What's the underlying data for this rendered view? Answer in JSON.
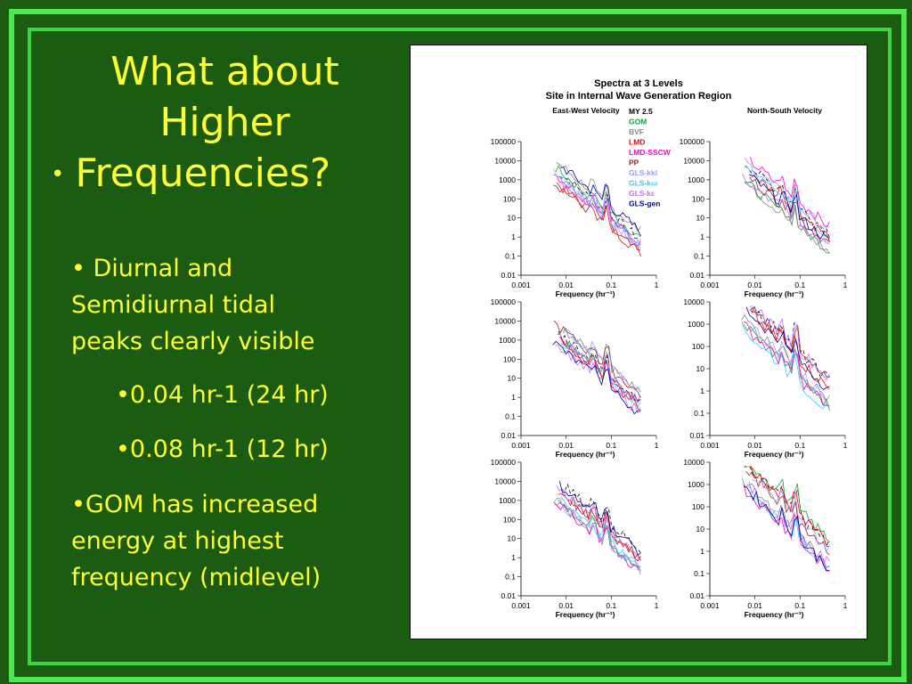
{
  "slide": {
    "title_lines": [
      "What about",
      "Higher",
      "Frequencies?"
    ],
    "title_bullet": "•",
    "bullets": [
      {
        "text": "• Diurnal and"
      },
      {
        "text": "Semidiurnal tidal"
      },
      {
        "text": "peaks clearly visible"
      },
      {
        "text": "•0.04 hr-1 (24 hr)"
      },
      {
        "text": "•0.08 hr-1 (12 hr)"
      },
      {
        "text": "•GOM has increased"
      },
      {
        "text": "energy at highest"
      },
      {
        "text": "frequency (midlevel)"
      }
    ]
  },
  "colors": {
    "background": "#1b5c12",
    "border": "#4de84d",
    "text": "#ffff33"
  },
  "chart_data": {
    "type": "line",
    "title": "Spectra at 3 Levels",
    "subtitle": "Site in Internal Wave Generation Region",
    "left_column_label": "East-West Velocity",
    "right_column_label": "North-South Velocity",
    "xlabel": "Frequency (hr⁻¹)",
    "x_scale": "log",
    "y_scale": "log",
    "xlim": [
      0.001,
      1
    ],
    "x_ticks": [
      "0.001",
      "0.01",
      "0.1",
      "1"
    ],
    "legend": [
      {
        "name": "MY 2.5",
        "color": "#000000"
      },
      {
        "name": "GOM",
        "color": "#1a9c3a"
      },
      {
        "name": "BVF",
        "color": "#888888"
      },
      {
        "name": "LMD",
        "color": "#ff0000"
      },
      {
        "name": "LMD-SSCW",
        "color": "#ff00cc"
      },
      {
        "name": "PP",
        "color": "#8b2a2a"
      },
      {
        "name": "GLS-kkl",
        "color": "#9999ff"
      },
      {
        "name": "GLS-kω",
        "color": "#33ccff"
      },
      {
        "name": "GLS-kε",
        "color": "#cc66ff"
      },
      {
        "name": "GLS-gen",
        "color": "#000099"
      }
    ],
    "panels": [
      {
        "row": 0,
        "col": 0,
        "ylim": [
          0.01,
          100000
        ],
        "y_ticks": [
          "0.01",
          "0.1",
          "1",
          "10",
          "100",
          "1000",
          "10000",
          "100000"
        ]
      },
      {
        "row": 0,
        "col": 1,
        "ylim": [
          0.01,
          100000
        ],
        "y_ticks": [
          "0.01",
          "0.1",
          "1",
          "10",
          "100",
          "1000",
          "10000",
          "100000"
        ]
      },
      {
        "row": 1,
        "col": 0,
        "ylim": [
          0.01,
          100000
        ],
        "y_ticks": [
          "0.01",
          "0.1",
          "1",
          "10",
          "100",
          "1000",
          "10000",
          "100000"
        ]
      },
      {
        "row": 1,
        "col": 1,
        "ylim": [
          0.01,
          10000
        ],
        "y_ticks": [
          "0.01",
          "0.1",
          "1",
          "10",
          "100",
          "1000",
          "10000"
        ]
      },
      {
        "row": 2,
        "col": 0,
        "ylim": [
          0.01,
          100000
        ],
        "y_ticks": [
          "0.01",
          "0.1",
          "1",
          "10",
          "100",
          "1000",
          "10000",
          "100000"
        ]
      },
      {
        "row": 2,
        "col": 1,
        "ylim": [
          0.01,
          10000
        ],
        "y_ticks": [
          "0.01",
          "0.1",
          "1",
          "10",
          "100",
          "1000",
          "10000"
        ]
      }
    ],
    "series_shape": {
      "start_freq": 0.005,
      "end_freq": 0.45,
      "diurnal_peak_freq": 0.04,
      "semidiurnal_peak_freq": 0.08
    }
  }
}
